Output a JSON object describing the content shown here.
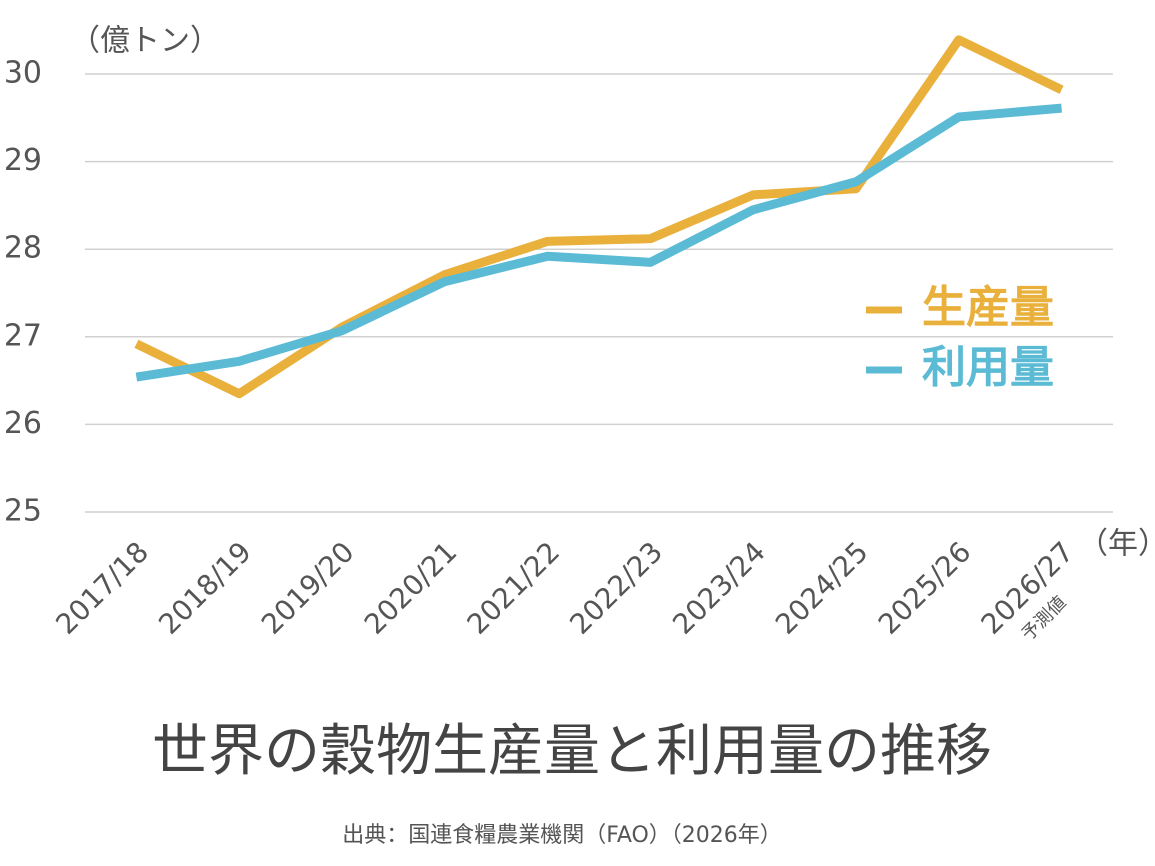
{
  "chart_data": {
    "type": "line",
    "title": "世界の穀物生産量と利用量の推移",
    "source": "出典：国連食糧農業機関（FAO）（2026年）",
    "y_label": "（億トン）",
    "x_label": "（年）",
    "annotation": "予測値",
    "categories": [
      "2017/18",
      "2018/19",
      "2019/20",
      "2020/21",
      "2021/22",
      "2022/23",
      "2023/24",
      "2024/25",
      "2025/26",
      "2026/27"
    ],
    "series": [
      {
        "name": "生産量",
        "color": "#e9b03b",
        "values": [
          26.92,
          26.35,
          27.11,
          27.71,
          28.09,
          28.12,
          28.62,
          28.69,
          30.39,
          29.82
        ]
      },
      {
        "name": "利用量",
        "color": "#5bbbd5",
        "values": [
          26.54,
          26.72,
          27.07,
          27.63,
          27.92,
          27.85,
          28.45,
          28.77,
          29.51,
          29.61
        ]
      }
    ],
    "ylim": [
      25,
      30.5
    ],
    "yticks": [
      25,
      26,
      27,
      28,
      29,
      30
    ],
    "grid": true,
    "legend": "right"
  }
}
